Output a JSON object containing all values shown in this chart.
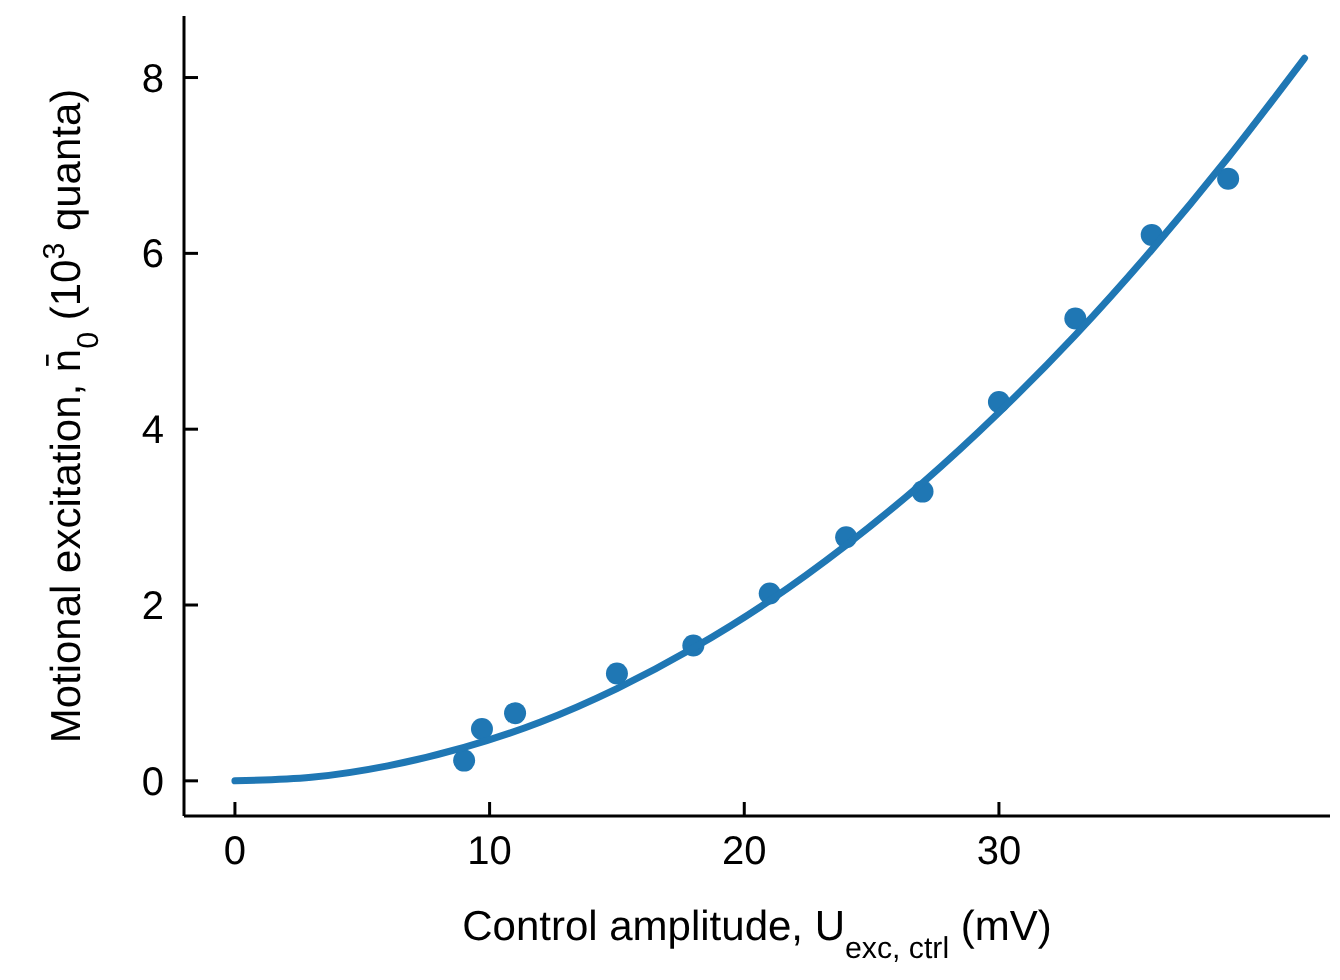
{
  "chart_data": {
    "type": "scatter",
    "xlabel": "Control amplitude, U$_{exc, ctrl}$ (mV)",
    "ylabel": "Motional excitation, n̄$_{0}$ (10$^{3}$ quanta)",
    "xlim": [
      -2,
      43
    ],
    "ylim": [
      -0.4,
      8.7
    ],
    "xticks": [
      0,
      10,
      20,
      30
    ],
    "yticks": [
      0,
      2,
      4,
      6,
      8
    ],
    "grid": false,
    "series": [
      {
        "color": "#1f77b4",
        "marker": "circle",
        "x": [
          9,
          9.7,
          11,
          15,
          18,
          21,
          24,
          27,
          30,
          33,
          36,
          39
        ],
        "values": [
          0.23,
          0.59,
          0.77,
          1.22,
          1.54,
          2.13,
          2.77,
          3.29,
          4.31,
          5.26,
          6.21,
          6.85
        ]
      },
      {
        "type": "line",
        "color": "#1f77b4",
        "x": [
          0,
          3,
          6,
          9,
          12,
          15,
          18,
          21,
          24,
          27,
          30,
          33,
          36,
          39,
          42
        ],
        "values": [
          0,
          0.04,
          0.17,
          0.38,
          0.67,
          1.05,
          1.51,
          2.05,
          2.68,
          3.39,
          4.19,
          5.07,
          6.04,
          7.09,
          8.22
        ]
      }
    ]
  }
}
